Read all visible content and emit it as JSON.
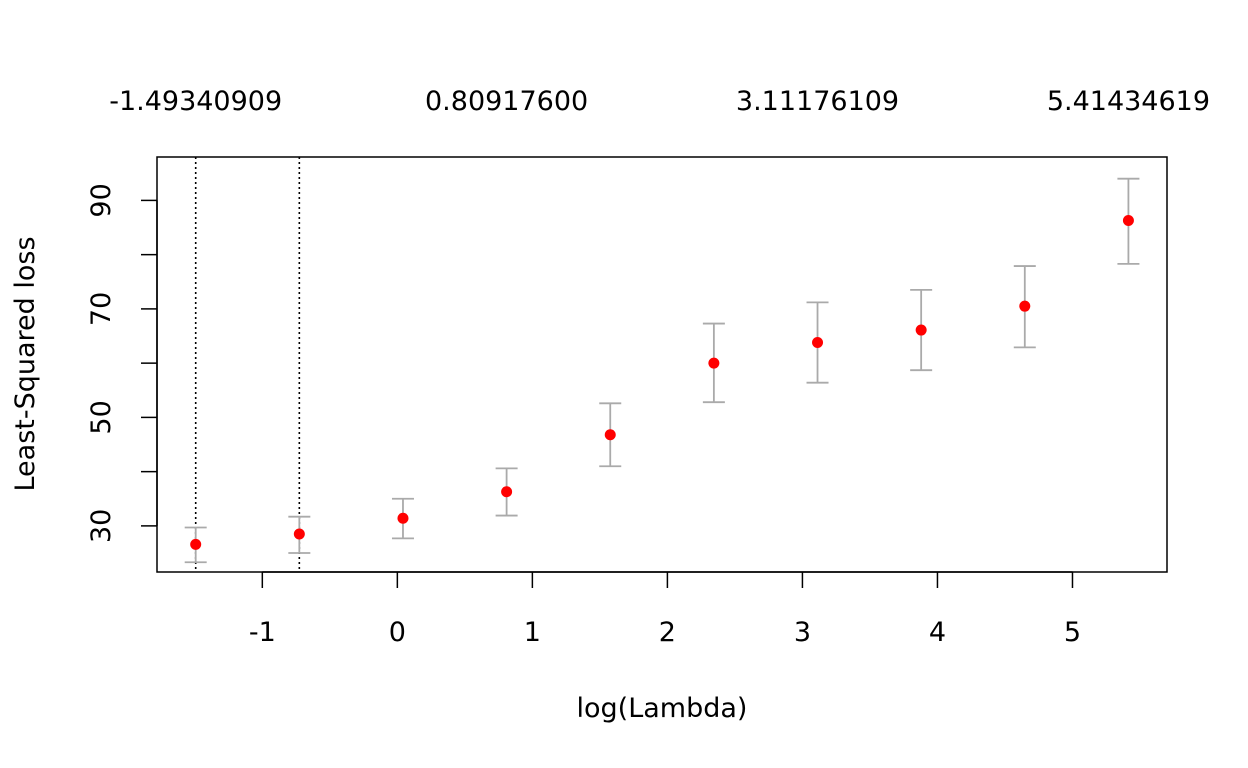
{
  "chart_data": {
    "type": "scatter",
    "title": "",
    "xlabel": "log(Lambda)",
    "ylabel": "Least-Squared loss",
    "xlim": [
      -1.78,
      5.7
    ],
    "ylim": [
      21.5,
      98
    ],
    "x_ticks": [
      -1,
      0,
      1,
      2,
      3,
      4,
      5
    ],
    "y_ticks": [
      30,
      40,
      50,
      60,
      70,
      80,
      90
    ],
    "y_tick_labels": [
      30,
      50,
      70,
      90
    ],
    "top_axis_labels": [
      {
        "x": -1.49340909,
        "label": "-1.49340909"
      },
      {
        "x": 0.809176,
        "label": "0.80917600"
      },
      {
        "x": 3.11176109,
        "label": "3.11176109"
      },
      {
        "x": 5.41434619,
        "label": "5.41434619"
      }
    ],
    "vlines": [
      -1.4934,
      -0.7259
    ],
    "points": [
      {
        "x": -1.4934,
        "y": 26.6,
        "lower": 23.3,
        "upper": 29.7
      },
      {
        "x": -0.7259,
        "y": 28.5,
        "lower": 25.0,
        "upper": 31.7
      },
      {
        "x": 0.0417,
        "y": 31.4,
        "lower": 27.7,
        "upper": 35.0
      },
      {
        "x": 0.8092,
        "y": 36.3,
        "lower": 31.9,
        "upper": 40.6
      },
      {
        "x": 1.5767,
        "y": 46.8,
        "lower": 41.0,
        "upper": 52.6
      },
      {
        "x": 2.3442,
        "y": 60.0,
        "lower": 52.8,
        "upper": 67.3
      },
      {
        "x": 3.1118,
        "y": 63.8,
        "lower": 56.4,
        "upper": 71.2
      },
      {
        "x": 3.8793,
        "y": 66.1,
        "lower": 58.7,
        "upper": 73.5
      },
      {
        "x": 4.6468,
        "y": 70.5,
        "lower": 62.9,
        "upper": 77.9
      },
      {
        "x": 5.4143,
        "y": 86.3,
        "lower": 78.3,
        "upper": 94.0
      }
    ],
    "grid": false,
    "colors": {
      "points": "#ff0000",
      "errorbars": "#aaaaaa",
      "axis": "#000000"
    }
  }
}
